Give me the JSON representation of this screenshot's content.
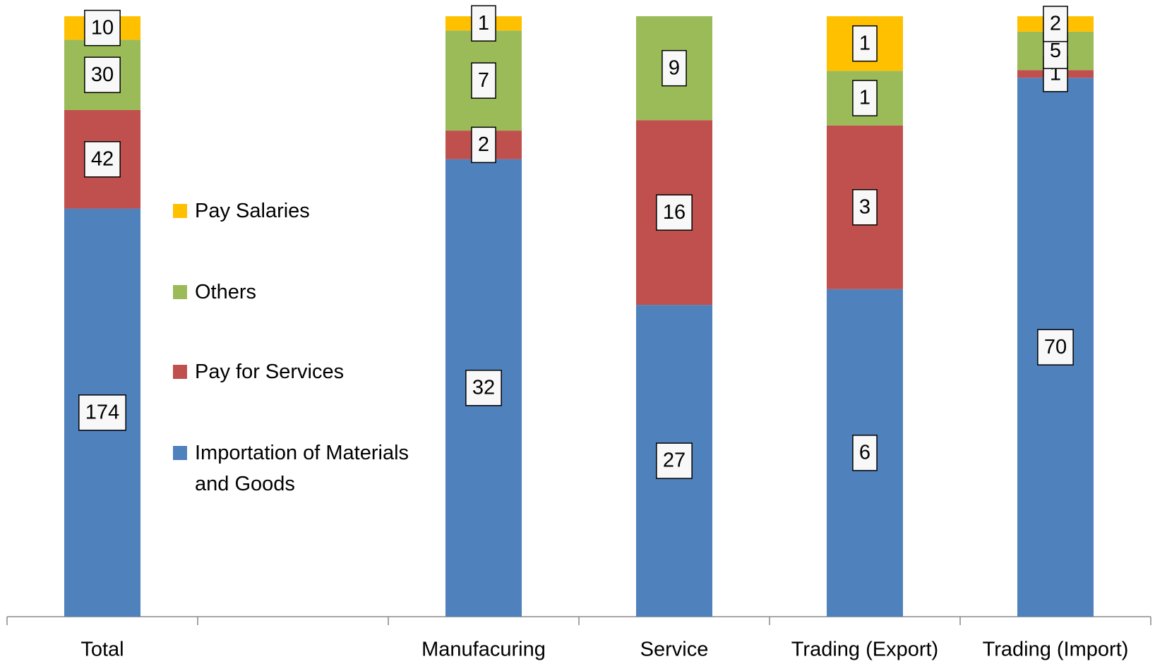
{
  "chart_data": {
    "type": "bar",
    "stacking": "percent",
    "categories": [
      "Total",
      null,
      "Manufacuring",
      "Service",
      "Trading (Export)",
      "Trading (Import)"
    ],
    "series": [
      {
        "name": "Importation of Materials and Goods",
        "color": "#4f81bd",
        "values": [
          174,
          null,
          32,
          27,
          6,
          70
        ]
      },
      {
        "name": "Pay for Services",
        "color": "#c0504d",
        "values": [
          42,
          null,
          2,
          16,
          3,
          1
        ]
      },
      {
        "name": "Others",
        "color": "#9bbb59",
        "values": [
          30,
          null,
          7,
          9,
          1,
          5
        ]
      },
      {
        "name": "Pay Salaries",
        "color": "#ffc000",
        "values": [
          10,
          null,
          1,
          null,
          1,
          2
        ]
      }
    ],
    "legend": "left",
    "data_labels": true
  }
}
